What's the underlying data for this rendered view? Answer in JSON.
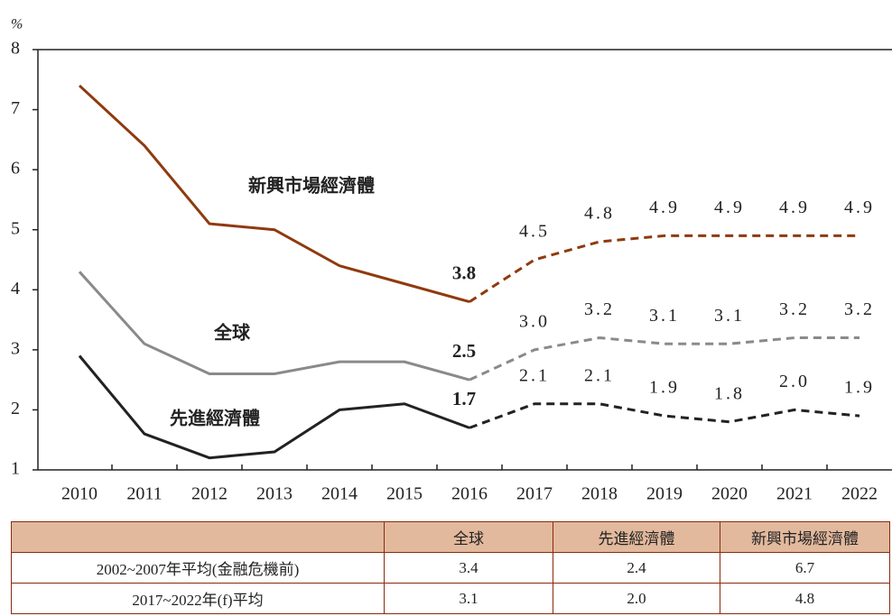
{
  "chart_data": {
    "type": "line",
    "y_label": "%",
    "categories": [
      "2010",
      "2011",
      "2012",
      "2013",
      "2014",
      "2015",
      "2016",
      "2017",
      "2018",
      "2019",
      "2020",
      "2021",
      "2022"
    ],
    "dashed_from": "2016",
    "series": [
      {
        "name": "新興市場經濟體",
        "color": "#8f3a0e",
        "values": [
          7.4,
          6.4,
          5.1,
          5.0,
          4.4,
          4.1,
          3.8,
          4.5,
          4.8,
          4.9,
          4.9,
          4.9,
          4.9
        ],
        "value_labels": [
          null,
          null,
          null,
          null,
          null,
          null,
          "3.8",
          "4.5",
          "4.8",
          "4.9",
          "4.9",
          "4.9",
          "4.9"
        ]
      },
      {
        "name": "全球",
        "color": "#8a8a8a",
        "values": [
          4.3,
          3.1,
          2.6,
          2.6,
          2.8,
          2.8,
          2.5,
          3.0,
          3.2,
          3.1,
          3.1,
          3.2,
          3.2
        ],
        "value_labels": [
          null,
          null,
          null,
          null,
          null,
          null,
          "2.5",
          "3.0",
          "3.2",
          "3.1",
          "3.1",
          "3.2",
          "3.2"
        ]
      },
      {
        "name": "先進經濟體",
        "color": "#222222",
        "values": [
          2.9,
          1.6,
          1.2,
          1.3,
          2.0,
          2.1,
          1.7,
          2.1,
          2.1,
          1.9,
          1.8,
          2.0,
          1.9
        ],
        "value_labels": [
          null,
          null,
          null,
          null,
          null,
          null,
          "1.7",
          "2.1",
          "2.1",
          "1.9",
          "1.8",
          "2.0",
          "1.9"
        ]
      }
    ],
    "ylim": [
      1,
      8
    ],
    "yticks": [
      1,
      2,
      3,
      4,
      5,
      6,
      7,
      8
    ]
  },
  "table": {
    "header": [
      "",
      "全球",
      "先進經濟體",
      "新興市場經濟體"
    ],
    "rows": [
      [
        "2002~2007年平均(金融危機前)",
        "3.4",
        "2.4",
        "6.7"
      ],
      [
        "2017~2022年(f)平均",
        "3.1",
        "2.0",
        "4.8"
      ]
    ]
  }
}
